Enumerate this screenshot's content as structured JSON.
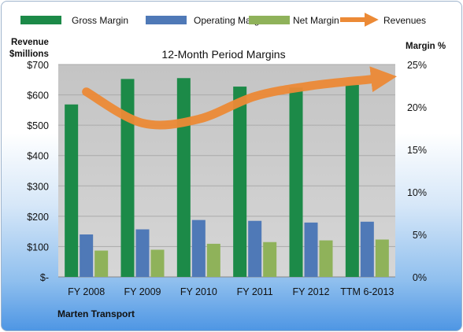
{
  "legend": {
    "gross": "Gross Margin",
    "operating": "Operating Margin",
    "net": "Net Margin",
    "revenues": "Revenues"
  },
  "left_axis_title": [
    "Revenue",
    "$millions"
  ],
  "right_axis_title": "Margin %",
  "footer": "Marten Transport",
  "colors": {
    "gross": "#1c8a48",
    "operating": "#4f79b7",
    "net": "#8fb25a",
    "revenues": "#ec8a36",
    "plot_bg": "#c9c9c9"
  },
  "chart_data": {
    "type": "bar",
    "title": "12-Month Period Margins",
    "categories": [
      "FY 2008",
      "FY 2009",
      "FY 2010",
      "FY 2011",
      "FY 2012",
      "TTM 6-2013"
    ],
    "series": [
      {
        "name": "Gross Margin",
        "axis": "right",
        "values": [
          20.3,
          23.3,
          23.4,
          22.4,
          22.3,
          22.6
        ]
      },
      {
        "name": "Operating Margin",
        "axis": "right",
        "values": [
          5.0,
          5.6,
          6.7,
          6.6,
          6.4,
          6.5
        ]
      },
      {
        "name": "Net Margin",
        "axis": "right",
        "values": [
          3.1,
          3.2,
          3.9,
          4.1,
          4.3,
          4.4
        ]
      },
      {
        "name": "Revenues",
        "type": "line",
        "axis": "left",
        "values": [
          610,
          507,
          520,
          595,
          630,
          650
        ]
      }
    ],
    "y_left": {
      "label": "Revenue $millions",
      "min": 0,
      "max": 700,
      "ticks": [
        "$-",
        "$100",
        "$200",
        "$300",
        "$400",
        "$500",
        "$600",
        "$700"
      ]
    },
    "y_right": {
      "label": "Margin %",
      "min": 0,
      "max": 25,
      "ticks": [
        "0%",
        "5%",
        "10%",
        "15%",
        "20%",
        "25%"
      ]
    },
    "grid": true,
    "legend_position": "top"
  }
}
